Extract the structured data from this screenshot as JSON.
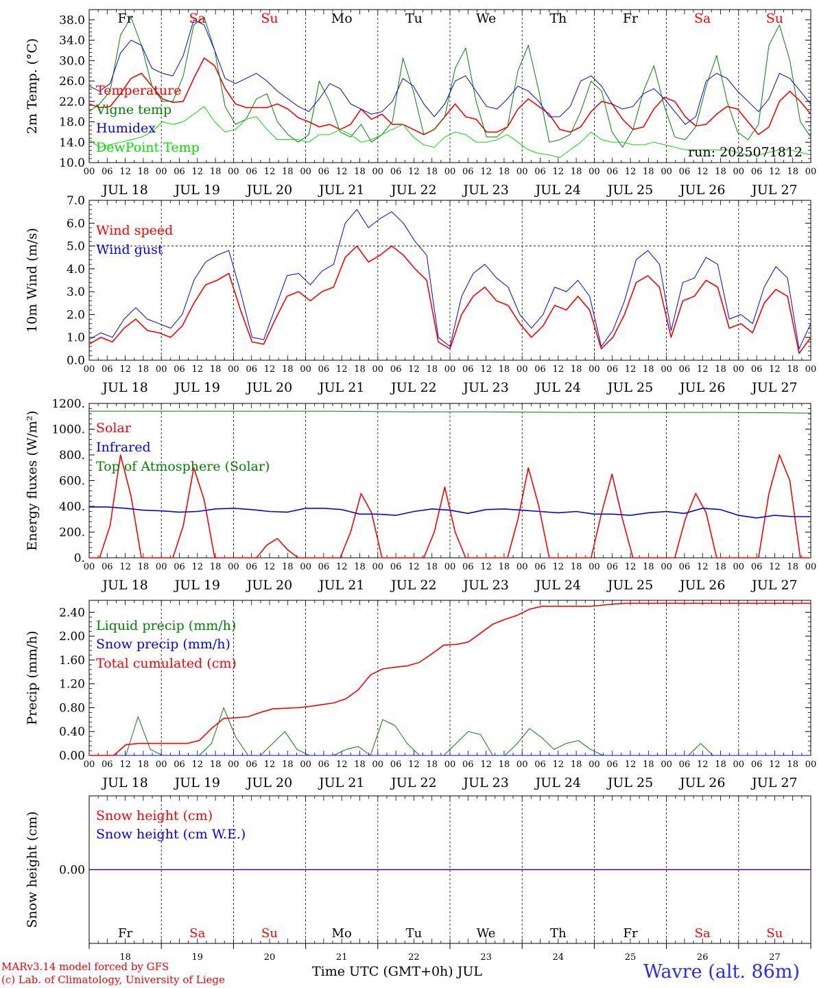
{
  "meta": {
    "xaxis_title": "Time UTC (GMT+0h) JUL",
    "credit_line1": "MARv3.14 model forced by GFS",
    "credit_line2": "(c) Lab. of Climatology, University of Liege",
    "station": "Wavre (alt. 86m)",
    "run_label": "run: 2025071812"
  },
  "axis": {
    "hour_ticks": [
      "00",
      "06",
      "12",
      "18"
    ],
    "dates": [
      "JUL 18",
      "JUL 19",
      "JUL 20",
      "JUL 21",
      "JUL 22",
      "JUL 23",
      "JUL 24",
      "JUL 25",
      "JUL 26",
      "JUL 27"
    ],
    "days": [
      "Fr",
      "Sa",
      "Su",
      "Mo",
      "Tu",
      "We",
      "Th",
      "Fr",
      "Sa",
      "Su"
    ],
    "day_numbers": [
      "18",
      "19",
      "20",
      "21",
      "22",
      "23",
      "24",
      "25",
      "26",
      "27"
    ],
    "weekend": [
      false,
      true,
      true,
      false,
      false,
      false,
      false,
      false,
      true,
      true
    ]
  },
  "colors": {
    "red": "#ff0000",
    "green": "#008000",
    "blue": "#0000ff",
    "light_green": "#00e000",
    "weekday_label": "#000000",
    "weekend_label": "#ff0000",
    "station": "#2a2aff"
  },
  "chart_data": [
    {
      "id": "temperature",
      "type": "line",
      "ylabel": "2m Temp. (°C)",
      "ylim": [
        10,
        40
      ],
      "yticks": [
        "10.0",
        "14.0",
        "18.0",
        "22.0",
        "26.0",
        "30.0",
        "34.0",
        "38.0"
      ],
      "ytick_values": [
        10,
        14,
        18,
        22,
        26,
        30,
        34,
        38
      ],
      "x": "hours since JUL 18 00 UTC (3-hourly)",
      "series": [
        {
          "name": "Temperature",
          "color": "#ff0000",
          "width": 1.6,
          "values": [
            21.5,
            20.8,
            21.0,
            23.5,
            26.5,
            27.5,
            25.0,
            22.5,
            21.8,
            22.0,
            26.5,
            30.5,
            29.0,
            24.5,
            21.5,
            20.8,
            20.8,
            20.8,
            21.5,
            20.5,
            18.8,
            18.0,
            17.0,
            17.5,
            16.5,
            17.5,
            20.5,
            18.5,
            19.5,
            17.5,
            17.5,
            16.5,
            15.5,
            16.5,
            19.0,
            21.5,
            19.0,
            18.5,
            16.0,
            16.0,
            17.0,
            20.5,
            22.5,
            21.0,
            19.5,
            16.5,
            16.0,
            17.0,
            20.0,
            22.0,
            21.5,
            18.5,
            16.5,
            17.0,
            20.5,
            22.8,
            22.0,
            19.0,
            17.2,
            17.5,
            19.5,
            21.0,
            20.5,
            18.0,
            15.5,
            17.0,
            22.0,
            24.0,
            22.0,
            19.5
          ]
        },
        {
          "name": "Vigne temp",
          "color": "#008000",
          "width": 1,
          "values": [
            20.0,
            21.5,
            24.0,
            35.0,
            38.5,
            33.0,
            25.0,
            22.0,
            22.0,
            27.0,
            37.0,
            38.5,
            32.0,
            21.0,
            17.5,
            18.5,
            22.5,
            23.5,
            18.0,
            15.5,
            14.0,
            15.5,
            26.0,
            22.0,
            16.0,
            15.0,
            17.5,
            14.0,
            15.5,
            18.0,
            30.5,
            24.0,
            15.5,
            16.5,
            19.0,
            28.5,
            32.5,
            22.0,
            15.0,
            15.0,
            17.0,
            28.0,
            33.0,
            24.0,
            14.0,
            14.5,
            15.5,
            20.0,
            26.0,
            24.0,
            16.0,
            13.0,
            16.5,
            24.0,
            29.0,
            21.0,
            15.0,
            14.5,
            17.0,
            25.0,
            31.0,
            22.0,
            16.0,
            14.5,
            17.5,
            33.0,
            37.0,
            30.0,
            18.0,
            15.0
          ]
        },
        {
          "name": "Humidex",
          "color": "#0000ff",
          "width": 1,
          "values": [
            25.0,
            24.0,
            25.5,
            31.5,
            34.0,
            33.0,
            28.5,
            27.5,
            27.0,
            31.0,
            38.0,
            37.0,
            32.0,
            26.5,
            25.5,
            26.5,
            27.5,
            26.0,
            24.0,
            22.5,
            21.0,
            20.0,
            22.5,
            25.5,
            24.5,
            21.5,
            20.5,
            19.5,
            20.0,
            22.0,
            26.5,
            25.0,
            21.5,
            19.0,
            21.5,
            26.0,
            27.0,
            24.0,
            21.0,
            20.5,
            22.5,
            25.0,
            24.0,
            22.0,
            19.0,
            19.0,
            21.0,
            26.0,
            27.0,
            25.0,
            21.5,
            20.5,
            21.0,
            23.5,
            24.5,
            22.5,
            20.0,
            17.5,
            19.0,
            26.0,
            27.5,
            26.5,
            24.0,
            22.0,
            20.0,
            22.5,
            27.5,
            26.5,
            24.0,
            21.5
          ]
        },
        {
          "name": "DewPoint Temp",
          "color": "#00e000",
          "width": 1,
          "values": [
            14.5,
            13.0,
            13.5,
            14.0,
            14.5,
            15.0,
            16.0,
            18.0,
            17.5,
            18.0,
            19.5,
            21.0,
            18.0,
            16.0,
            16.5,
            18.5,
            19.0,
            16.5,
            14.5,
            14.5,
            14.5,
            14.0,
            15.5,
            15.5,
            16.5,
            15.5,
            14.0,
            14.5,
            15.5,
            16.5,
            17.5,
            15.0,
            13.5,
            13.0,
            15.0,
            16.0,
            15.5,
            14.0,
            14.0,
            14.5,
            15.5,
            14.0,
            12.5,
            11.8,
            11.5,
            11.0,
            12.5,
            14.0,
            16.0,
            14.5,
            14.0,
            14.0,
            13.5,
            13.5,
            14.0,
            13.5,
            13.0,
            12.5,
            12.5,
            12.5,
            12.5,
            12.5,
            12.0,
            11.5,
            11.5,
            12.0,
            12.5,
            12.5,
            12.0,
            11.5
          ]
        }
      ]
    },
    {
      "id": "wind",
      "type": "line",
      "ylabel": "10m Wind (m/s)",
      "ylim": [
        0,
        7
      ],
      "yticks": [
        "0.0",
        "1.0",
        "2.0",
        "3.0",
        "4.0",
        "5.0",
        "6.0",
        "7.0"
      ],
      "ytick_values": [
        0,
        1,
        2,
        3,
        4,
        5,
        6,
        7
      ],
      "reference_line": 5.0,
      "x": "hours since JUL 18 00 UTC (3-hourly)",
      "series": [
        {
          "name": "Wind speed",
          "color": "#ff0000",
          "width": 1.6,
          "values": [
            0.7,
            1.0,
            0.8,
            1.4,
            1.8,
            1.3,
            1.2,
            1.0,
            1.5,
            2.5,
            3.3,
            3.5,
            3.8,
            2.2,
            0.8,
            0.7,
            1.8,
            2.8,
            3.0,
            2.6,
            3.0,
            3.2,
            4.5,
            5.0,
            4.3,
            4.6,
            5.0,
            4.6,
            4.0,
            3.5,
            0.8,
            0.5,
            2.0,
            2.8,
            3.2,
            2.6,
            2.4,
            1.6,
            1.0,
            1.5,
            2.4,
            2.2,
            2.8,
            2.2,
            0.5,
            1.0,
            2.0,
            3.4,
            3.7,
            3.2,
            1.0,
            2.6,
            2.8,
            3.5,
            3.2,
            1.4,
            1.6,
            1.2,
            2.5,
            3.1,
            2.8,
            0.3,
            1.0
          ]
        },
        {
          "name": "Wind gust",
          "color": "#0000ff",
          "width": 1,
          "values": [
            0.9,
            1.2,
            1.0,
            1.8,
            2.3,
            1.8,
            1.6,
            1.4,
            2.0,
            3.5,
            4.3,
            4.6,
            4.8,
            3.0,
            1.0,
            0.9,
            2.3,
            3.7,
            3.8,
            3.3,
            3.9,
            4.2,
            6.0,
            6.6,
            5.8,
            6.2,
            6.5,
            6.0,
            5.2,
            4.6,
            1.0,
            0.6,
            2.8,
            3.8,
            4.2,
            3.6,
            3.2,
            2.0,
            1.4,
            2.0,
            3.2,
            3.0,
            3.5,
            2.8,
            0.6,
            1.3,
            2.6,
            4.4,
            4.8,
            4.2,
            1.3,
            3.4,
            3.6,
            4.5,
            4.2,
            1.8,
            2.0,
            1.6,
            3.2,
            4.1,
            3.6,
            0.5,
            1.6
          ]
        }
      ]
    },
    {
      "id": "energy",
      "type": "line",
      "ylabel": "Energy fluxes (W/m²)",
      "ylim": [
        0,
        1200
      ],
      "yticks": [
        "0.",
        "200.",
        "400.",
        "600.",
        "800.",
        "1000.",
        "1200."
      ],
      "ytick_values": [
        0,
        200,
        400,
        600,
        800,
        1000,
        1200
      ],
      "x": "hours since JUL 18 00 UTC (3-hourly)",
      "series": [
        {
          "name": "Solar",
          "color": "#ff0000",
          "width": 1.6,
          "values": [
            0,
            0,
            250,
            800,
            480,
            0,
            0,
            0,
            0,
            250,
            700,
            450,
            0,
            0,
            0,
            0,
            0,
            100,
            150,
            60,
            0,
            0,
            0,
            0,
            0,
            200,
            500,
            350,
            0,
            0,
            0,
            0,
            0,
            200,
            550,
            200,
            0,
            0,
            0,
            0,
            0,
            300,
            700,
            400,
            0,
            0,
            0,
            0,
            0,
            350,
            650,
            300,
            0,
            0,
            0,
            0,
            0,
            300,
            500,
            350,
            0,
            0,
            0,
            0,
            0,
            500,
            800,
            600,
            0,
            0
          ]
        },
        {
          "name": "Infrared",
          "color": "#0000ff",
          "width": 1.6,
          "values": [
            395,
            395,
            385,
            370,
            365,
            355,
            360,
            380,
            385,
            375,
            360,
            355,
            385,
            385,
            375,
            340,
            340,
            330,
            360,
            380,
            370,
            345,
            375,
            380,
            370,
            360,
            350,
            360,
            340,
            340,
            330,
            350,
            360,
            345,
            385,
            375,
            330,
            310,
            330,
            320,
            320
          ]
        },
        {
          "name": "Top of Atmosphere (Solar)",
          "color": "#008000",
          "width": 1,
          "values": [
            1140,
            1140,
            1140,
            1140,
            1135,
            1135,
            1130,
            1130,
            1130,
            1125
          ]
        }
      ]
    },
    {
      "id": "precip",
      "type": "line",
      "ylabel": "Precip (mm/h)",
      "ylim": [
        0,
        2.6
      ],
      "yticks": [
        "0.00",
        "0.40",
        "0.80",
        "1.20",
        "1.60",
        "2.00",
        "2.40"
      ],
      "ytick_values": [
        0,
        0.4,
        0.8,
        1.2,
        1.6,
        2.0,
        2.4
      ],
      "x": "hours since JUL 18 00 UTC (3-hourly)",
      "series": [
        {
          "name": "Liquid precip (mm/h)",
          "color": "#008000",
          "width": 1,
          "values": [
            0,
            0,
            0,
            0,
            0.65,
            0.1,
            0,
            0,
            0,
            0,
            0.2,
            0.8,
            0.3,
            0,
            0,
            0.2,
            0.4,
            0.1,
            0,
            0,
            0,
            0.1,
            0.15,
            0,
            0.6,
            0.5,
            0.2,
            0,
            0,
            0,
            0.2,
            0.4,
            0.35,
            0,
            0,
            0.2,
            0.45,
            0.3,
            0.1,
            0.2,
            0.25,
            0.1,
            0,
            0,
            0,
            0,
            0,
            0,
            0,
            0,
            0.2,
            0,
            0,
            0,
            0,
            0,
            0,
            0,
            0,
            0
          ]
        },
        {
          "name": "Snow precip (mm/h)",
          "color": "#0000ff",
          "width": 1,
          "values": [
            0,
            0,
            0,
            0,
            0,
            0,
            0,
            0,
            0,
            0
          ]
        },
        {
          "name": "Total cumulated (cm)",
          "color": "#ff0000",
          "width": 1.6,
          "values": [
            0,
            0,
            0,
            0.18,
            0.2,
            0.2,
            0.2,
            0.2,
            0.2,
            0.25,
            0.45,
            0.62,
            0.63,
            0.65,
            0.72,
            0.78,
            0.79,
            0.8,
            0.82,
            0.85,
            0.88,
            0.95,
            1.1,
            1.35,
            1.45,
            1.48,
            1.5,
            1.56,
            1.7,
            1.85,
            1.86,
            1.9,
            2.05,
            2.2,
            2.28,
            2.35,
            2.45,
            2.5,
            2.5,
            2.5,
            2.5,
            2.5,
            2.52,
            2.54,
            2.55,
            2.55,
            2.55,
            2.55,
            2.55,
            2.55,
            2.55,
            2.55,
            2.55,
            2.55,
            2.55,
            2.55,
            2.55,
            2.55,
            2.55,
            2.55
          ]
        }
      ]
    },
    {
      "id": "snow",
      "type": "line",
      "ylabel": "Snow height (cm)",
      "ylim": [
        -1,
        1
      ],
      "yticks": [
        "0.00"
      ],
      "ytick_values": [
        0
      ],
      "x": "hours since JUL 18 00 UTC (3-hourly)",
      "series": [
        {
          "name": "Snow height (cm)",
          "color": "#ff0000",
          "width": 1.6,
          "values": [
            0,
            0
          ]
        },
        {
          "name": "Snow height (cm W.E.)",
          "color": "#0000ff",
          "width": 1,
          "values": [
            0,
            0
          ]
        }
      ]
    }
  ]
}
